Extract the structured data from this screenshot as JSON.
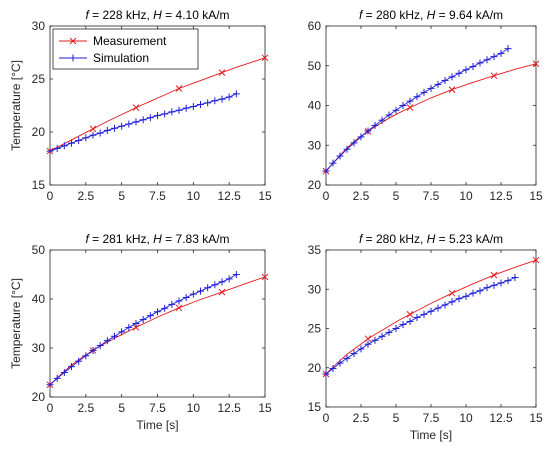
{
  "chart_data": [
    {
      "type": "line",
      "title_parts": [
        "f",
        " = 228 kHz, ",
        "H",
        " = 4.10 kA/m"
      ],
      "xlabel": "",
      "ylabel": "Temperature [°C]",
      "xlim": [
        0,
        15
      ],
      "ylim": [
        15,
        30
      ],
      "xticks": [
        0,
        2.5,
        5,
        7.5,
        10,
        12.5,
        15
      ],
      "xticklabels": [
        "0",
        "2.5",
        "5",
        "7.5",
        "10",
        "12.5",
        "15"
      ],
      "yticks": [
        15,
        20,
        25,
        30
      ],
      "yticklabels": [
        "15",
        "20",
        "25",
        "30"
      ],
      "grid": false,
      "legend": {
        "location": "top-left",
        "entries": [
          "Measurement",
          "Simulation"
        ]
      },
      "series": [
        {
          "name": "Measurement",
          "x": [
            0,
            3,
            6,
            9,
            12,
            15
          ],
          "y": [
            18.2,
            20.3,
            22.3,
            24.1,
            25.6,
            27.0
          ],
          "curve_x": [
            0,
            1,
            2,
            3,
            4,
            5,
            6,
            7,
            8,
            9,
            10,
            11,
            12,
            13,
            14,
            15
          ],
          "curve_y": [
            18.2,
            18.9,
            19.6,
            20.3,
            21.0,
            21.65,
            22.3,
            22.9,
            23.5,
            24.1,
            24.6,
            25.1,
            25.6,
            26.1,
            26.55,
            27.0
          ]
        },
        {
          "name": "Simulation",
          "x": [
            0,
            0.5,
            1,
            1.5,
            2,
            2.5,
            3,
            3.5,
            4,
            4.5,
            5,
            5.5,
            6,
            6.5,
            7,
            7.5,
            8,
            8.5,
            9,
            9.5,
            10,
            10.5,
            11,
            11.5,
            12,
            12.5,
            13
          ],
          "y": [
            18.2,
            18.45,
            18.7,
            18.95,
            19.2,
            19.45,
            19.7,
            19.9,
            20.15,
            20.35,
            20.55,
            20.75,
            20.95,
            21.15,
            21.35,
            21.55,
            21.7,
            21.9,
            22.05,
            22.25,
            22.4,
            22.6,
            22.75,
            22.95,
            23.1,
            23.3,
            23.6
          ]
        }
      ]
    },
    {
      "type": "line",
      "title_parts": [
        "f",
        " = 280 kHz, ",
        "H",
        " = 9.64 kA/m"
      ],
      "xlabel": "",
      "ylabel": "",
      "xlim": [
        0,
        15
      ],
      "ylim": [
        20,
        60
      ],
      "xticks": [
        0,
        2.5,
        5,
        7.5,
        10,
        12.5,
        15
      ],
      "xticklabels": [
        "0",
        "2.5",
        "5",
        "7.5",
        "10",
        "12.5",
        "15"
      ],
      "yticks": [
        20,
        30,
        40,
        50,
        60
      ],
      "yticklabels": [
        "20",
        "30",
        "40",
        "50",
        "60"
      ],
      "grid": false,
      "series": [
        {
          "name": "Measurement",
          "x": [
            0,
            3,
            6,
            9,
            12,
            15
          ],
          "y": [
            23.5,
            33.5,
            39.5,
            44.0,
            47.5,
            50.5
          ],
          "curve_x": [
            0,
            0.75,
            1.5,
            2.25,
            3,
            3.75,
            4.5,
            5.25,
            6,
            7.5,
            9,
            10.5,
            12,
            13.5,
            15
          ],
          "curve_y": [
            23.5,
            26.5,
            29.3,
            31.6,
            33.5,
            35.2,
            36.8,
            38.2,
            39.5,
            41.9,
            44.0,
            45.8,
            47.5,
            49.1,
            50.5
          ]
        },
        {
          "name": "Simulation",
          "x": [
            0,
            0.5,
            1,
            1.5,
            2,
            2.5,
            3,
            3.5,
            4,
            4.5,
            5,
            5.5,
            6,
            6.5,
            7,
            7.5,
            8,
            8.5,
            9,
            9.5,
            10,
            10.5,
            11,
            11.5,
            12,
            12.5,
            13
          ],
          "y": [
            23.5,
            25.5,
            27.3,
            29.0,
            30.6,
            32.1,
            33.6,
            35.0,
            36.3,
            37.6,
            38.8,
            40.0,
            41.1,
            42.2,
            43.3,
            44.3,
            45.3,
            46.3,
            47.2,
            48.1,
            49.0,
            49.8,
            50.7,
            51.5,
            52.3,
            53.1,
            54.3
          ]
        }
      ]
    },
    {
      "type": "line",
      "title_parts": [
        "f",
        " = 281 kHz, ",
        "H",
        " = 7.83 kA/m"
      ],
      "xlabel": "Time [s]",
      "ylabel": "Temperature [°C]",
      "xlim": [
        0,
        15
      ],
      "ylim": [
        20,
        50
      ],
      "xticks": [
        0,
        2.5,
        5,
        7.5,
        10,
        12.5,
        15
      ],
      "xticklabels": [
        "0",
        "2.5",
        "5",
        "7.5",
        "10",
        "12.5",
        "15"
      ],
      "yticks": [
        20,
        30,
        40,
        50
      ],
      "yticklabels": [
        "20",
        "30",
        "40",
        "50"
      ],
      "grid": false,
      "series": [
        {
          "name": "Measurement",
          "x": [
            0,
            3,
            6,
            9,
            12,
            15
          ],
          "y": [
            22.5,
            29.5,
            34.2,
            38.2,
            41.4,
            44.5
          ],
          "curve_x": [
            0,
            0.75,
            1.5,
            2.25,
            3,
            3.75,
            4.5,
            5.25,
            6,
            7.5,
            9,
            10.5,
            12,
            13.5,
            15
          ],
          "curve_y": [
            22.5,
            24.6,
            26.5,
            28.1,
            29.5,
            30.8,
            32.0,
            33.1,
            34.2,
            36.3,
            38.2,
            39.9,
            41.4,
            43.0,
            44.5
          ]
        },
        {
          "name": "Simulation",
          "x": [
            0,
            0.5,
            1,
            1.5,
            2,
            2.5,
            3,
            3.5,
            4,
            4.5,
            5,
            5.5,
            6,
            6.5,
            7,
            7.5,
            8,
            8.5,
            9,
            9.5,
            10,
            10.5,
            11,
            11.5,
            12,
            12.5,
            13
          ],
          "y": [
            22.5,
            23.8,
            25.0,
            26.2,
            27.3,
            28.4,
            29.5,
            30.5,
            31.5,
            32.4,
            33.3,
            34.2,
            35.0,
            35.8,
            36.6,
            37.4,
            38.1,
            38.9,
            39.6,
            40.3,
            41.0,
            41.6,
            42.3,
            42.9,
            43.5,
            44.1,
            45.0
          ]
        }
      ]
    },
    {
      "type": "line",
      "title_parts": [
        "f",
        " = 280 kHz, ",
        "H",
        " = 5.23 kA/m"
      ],
      "xlabel": "Time [s]",
      "ylabel": "",
      "xlim": [
        0,
        15
      ],
      "ylim": [
        15,
        35
      ],
      "xticks": [
        0,
        2.5,
        5,
        7.5,
        10,
        12.5,
        15
      ],
      "xticklabels": [
        "0",
        "2.5",
        "5",
        "7.5",
        "10",
        "12.5",
        "15"
      ],
      "yticks": [
        15,
        20,
        25,
        30,
        35
      ],
      "yticklabels": [
        "15",
        "20",
        "25",
        "30",
        "35"
      ],
      "grid": false,
      "series": [
        {
          "name": "Measurement",
          "x": [
            0,
            3,
            6,
            9,
            12,
            15
          ],
          "y": [
            19.2,
            23.7,
            26.8,
            29.5,
            31.8,
            33.7
          ],
          "curve_x": [
            0,
            0.75,
            1.5,
            2.25,
            3,
            3.75,
            4.5,
            5.25,
            6,
            7.5,
            9,
            10.5,
            12,
            13.5,
            15
          ],
          "curve_y": [
            19.2,
            20.5,
            21.7,
            22.7,
            23.7,
            24.5,
            25.3,
            26.1,
            26.8,
            28.2,
            29.5,
            30.7,
            31.8,
            32.8,
            33.7
          ]
        },
        {
          "name": "Simulation",
          "x": [
            0,
            0.5,
            1,
            1.5,
            2,
            2.5,
            3,
            3.5,
            4,
            4.5,
            5,
            5.5,
            6,
            6.5,
            7,
            7.5,
            8,
            8.5,
            9,
            9.5,
            10,
            10.5,
            11,
            11.5,
            12,
            12.5,
            13,
            13.5
          ],
          "y": [
            19.2,
            19.9,
            20.6,
            21.2,
            21.8,
            22.4,
            23.0,
            23.5,
            24.0,
            24.5,
            25.0,
            25.5,
            25.9,
            26.4,
            26.8,
            27.2,
            27.6,
            28.0,
            28.4,
            28.8,
            29.1,
            29.5,
            29.8,
            30.2,
            30.5,
            30.8,
            31.1,
            31.5
          ]
        }
      ]
    }
  ],
  "colors": {
    "measurement": "#e41a1c",
    "simulation": "#1f1fd6",
    "axis": "#262626"
  }
}
